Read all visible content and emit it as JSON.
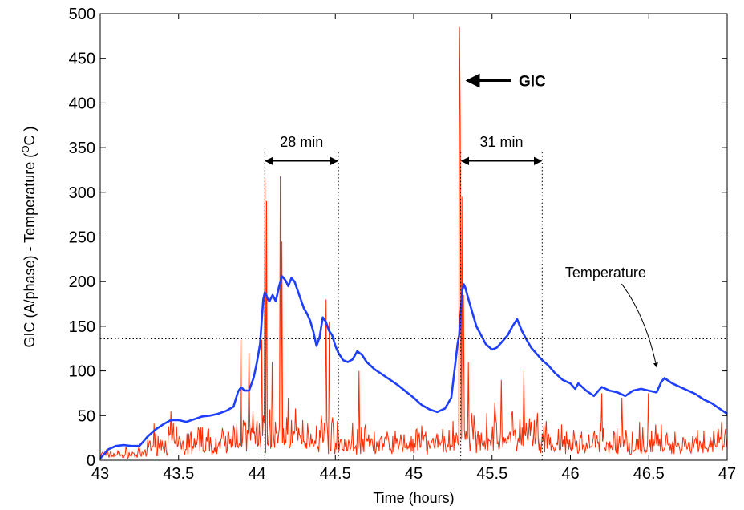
{
  "chart_data": {
    "type": "line",
    "xlabel": "Time (hours)",
    "ylabel": "GIC (A/phase) - Temperature (",
    "ylabel_unit": "O",
    "ylabel_tail": "C )",
    "xlim": [
      43,
      47
    ],
    "ylim": [
      0,
      500
    ],
    "xticks": [
      43,
      43.5,
      44,
      44.5,
      45,
      45.5,
      46,
      46.5,
      47
    ],
    "xtick_labels": [
      "43",
      "43.5",
      "44",
      "44.5",
      "45",
      "45.5",
      "46",
      "46.5",
      "47"
    ],
    "yticks": [
      0,
      50,
      100,
      150,
      200,
      250,
      300,
      350,
      400,
      450,
      500
    ],
    "ytick_labels": [
      "0",
      "50",
      "100",
      "150",
      "200",
      "250",
      "300",
      "350",
      "400",
      "450",
      "500"
    ],
    "grid": false,
    "threshold_y": 136,
    "colors": {
      "gic": "#ff2a00",
      "temperature": "#1f3fff",
      "axes": "#000000"
    },
    "series": [
      {
        "key": "temperature",
        "x": [
          43.0,
          43.05,
          43.1,
          43.15,
          43.2,
          43.25,
          43.3,
          43.35,
          43.4,
          43.45,
          43.5,
          43.55,
          43.6,
          43.65,
          43.7,
          43.75,
          43.8,
          43.85,
          43.88,
          43.9,
          43.92,
          43.95,
          43.98,
          44.0,
          44.02,
          44.04,
          44.05,
          44.06,
          44.07,
          44.08,
          44.1,
          44.12,
          44.14,
          44.16,
          44.18,
          44.2,
          44.22,
          44.24,
          44.26,
          44.28,
          44.3,
          44.32,
          44.34,
          44.36,
          44.38,
          44.4,
          44.42,
          44.44,
          44.46,
          44.48,
          44.5,
          44.52,
          44.55,
          44.58,
          44.61,
          44.64,
          44.67,
          44.7,
          44.75,
          44.8,
          44.85,
          44.9,
          44.95,
          45.0,
          45.05,
          45.1,
          45.15,
          45.2,
          45.24,
          45.26,
          45.28,
          45.29,
          45.3,
          45.31,
          45.32,
          45.33,
          45.35,
          45.37,
          45.4,
          45.43,
          45.46,
          45.5,
          45.53,
          45.56,
          45.6,
          45.63,
          45.66,
          45.69,
          45.72,
          45.75,
          45.78,
          45.82,
          45.86,
          45.9,
          45.95,
          46.0,
          46.03,
          46.05,
          46.1,
          46.15,
          46.2,
          46.25,
          46.3,
          46.35,
          46.4,
          46.45,
          46.5,
          46.55,
          46.58,
          46.6,
          46.65,
          46.7,
          46.75,
          46.8,
          46.85,
          46.9,
          46.95,
          47.0
        ],
        "values": [
          2,
          12,
          16,
          17,
          16,
          16,
          26,
          34,
          40,
          45,
          45,
          43,
          46,
          49,
          50,
          52,
          55,
          60,
          77,
          82,
          78,
          78,
          93,
          110,
          130,
          180,
          188,
          185,
          180,
          178,
          185,
          178,
          194,
          206,
          202,
          195,
          204,
          200,
          190,
          180,
          170,
          164,
          156,
          144,
          128,
          138,
          160,
          155,
          145,
          140,
          128,
          120,
          112,
          110,
          113,
          122,
          118,
          110,
          102,
          96,
          90,
          84,
          77,
          70,
          62,
          57,
          54,
          58,
          70,
          100,
          130,
          140,
          165,
          190,
          197,
          193,
          180,
          168,
          150,
          140,
          130,
          124,
          126,
          132,
          140,
          150,
          158,
          145,
          135,
          126,
          120,
          112,
          106,
          98,
          90,
          86,
          80,
          86,
          78,
          72,
          82,
          78,
          76,
          72,
          78,
          80,
          78,
          76,
          88,
          92,
          86,
          82,
          78,
          74,
          68,
          64,
          58,
          52
        ]
      },
      {
        "key": "gic",
        "x": [],
        "values": []
      }
    ]
  },
  "annotations": {
    "interval1_label": "28 min",
    "interval1_start": 44.05,
    "interval1_end": 44.52,
    "interval1_arrow_y": 335,
    "interval1_line_top": 345,
    "interval2_label": "31 min",
    "interval2_start": 45.3,
    "interval2_end": 45.82,
    "interval2_arrow_y": 335,
    "interval2_line_top": 345,
    "gic_label": "GIC",
    "gic_label_x": 45.67,
    "gic_label_y": 425,
    "gic_arrow_tip_x": 45.34,
    "temperature_label": "Temperature",
    "temperature_label_x": 46.02,
    "temperature_label_y": 210,
    "temperature_arrow_tip_x": 46.55,
    "temperature_arrow_tip_y": 97
  }
}
